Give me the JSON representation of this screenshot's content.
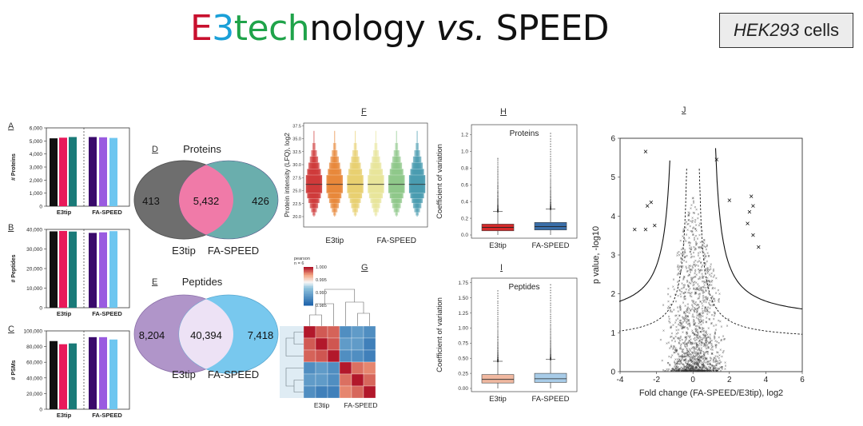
{
  "header": {
    "title_parts": [
      {
        "text": "E",
        "color": "#c8102e"
      },
      {
        "text": "3",
        "color": "#1aa0d8"
      },
      {
        "text": "tech",
        "color": "#1fa34a"
      },
      {
        "text": "nology",
        "color": "#111111"
      }
    ],
    "title_vs": "vs.",
    "title_tail": "SPEED",
    "cell_line_italic": "HEK293",
    "cell_line_suffix": "cells"
  },
  "panel_labels": {
    "a": "A",
    "b": "B",
    "c": "C",
    "d": "D",
    "e": "E",
    "f": "F",
    "g": "G",
    "h": "H",
    "i": "I",
    "j": "J"
  },
  "bar_charts": {
    "group_labels": [
      "E3tip",
      "FA-SPEED"
    ],
    "colors": [
      "#111111",
      "#e8195a",
      "#1a7a78",
      "#3a0a6b",
      "#9a5be0",
      "#6ec6f0"
    ],
    "charts": [
      {
        "ylabel": "# Proteins",
        "ticks": [
          "0",
          "1,000",
          "2,000",
          "3,000",
          "4,000",
          "5,000",
          "6,000"
        ],
        "ymax": 6000,
        "values": [
          5200,
          5250,
          5300,
          5300,
          5280,
          5230
        ]
      },
      {
        "ylabel": "# Peptides",
        "ticks": [
          "0",
          "10,000",
          "20,000",
          "30,000",
          "40,000"
        ],
        "ymax": 40000,
        "values": [
          39000,
          39200,
          38900,
          38200,
          38500,
          39100
        ]
      },
      {
        "ylabel": "# PSMs",
        "ticks": [
          "0",
          "20,000",
          "40,000",
          "60,000",
          "80,000",
          "100,000"
        ],
        "ymax": 100000,
        "values": [
          87000,
          83000,
          84000,
          92000,
          92000,
          89000
        ]
      }
    ]
  },
  "venn": {
    "proteins": {
      "title": "Proteins",
      "left": "413",
      "middle": "5,432",
      "right": "426",
      "label_left": "E3tip",
      "label_right": "FA-SPEED"
    },
    "peptides": {
      "title": "Peptides",
      "left": "8,204",
      "middle": "40,394",
      "right": "7,418",
      "label_left": "E3tip",
      "label_right": "FA-SPEED"
    }
  },
  "lfq_plot": {
    "ylabel": "Protein intensity (LFQ), log2",
    "ticks": [
      "20.0",
      "22.5",
      "25.0",
      "27.5",
      "30.0",
      "32.5",
      "35.0",
      "37.5"
    ],
    "ymin": 18,
    "ymax": 38,
    "group_labels": [
      "E3tip",
      "FA-SPEED"
    ],
    "colors": [
      "#cf3a3a",
      "#e8883a",
      "#e8d070",
      "#e8e59a",
      "#8fc88a",
      "#4a9cb0"
    ],
    "median": 26.2,
    "top": 36.5,
    "bottom": 20.0
  },
  "heatmap": {
    "legend_title": "pearson",
    "legend_n": "n = 6",
    "legend_ticks": [
      "1.000",
      "0.995",
      "0.990",
      "0.985"
    ],
    "group_labels": [
      "E3tip",
      "FA-SPEED"
    ],
    "matrix": [
      [
        1.0,
        0.9985,
        0.9983,
        0.987,
        0.988,
        0.987
      ],
      [
        0.9985,
        1.0,
        0.9986,
        0.988,
        0.988,
        0.986
      ],
      [
        0.9983,
        0.9986,
        1.0,
        0.987,
        0.987,
        0.986
      ],
      [
        0.987,
        0.988,
        0.987,
        1.0,
        0.998,
        0.9975
      ],
      [
        0.988,
        0.988,
        0.987,
        0.998,
        1.0,
        0.9982
      ],
      [
        0.987,
        0.986,
        0.986,
        0.9975,
        0.9982,
        1.0
      ]
    ]
  },
  "cv_proteins": {
    "title": "Proteins",
    "ylabel": "Coefficient of variation",
    "ticks": [
      "0.0",
      "0.2",
      "0.4",
      "0.6",
      "0.8",
      "1.0",
      "1.2"
    ],
    "ymax": 1.3,
    "group_labels": [
      "E3tip",
      "FA-SPEED"
    ],
    "colors": [
      "#d42a2a",
      "#3a6ea8"
    ],
    "boxes": [
      {
        "q1": 0.05,
        "median": 0.09,
        "q3": 0.13,
        "whisker_low": 0.0,
        "whisker_high": 0.28,
        "outlier_max": 0.92
      },
      {
        "q1": 0.06,
        "median": 0.1,
        "q3": 0.15,
        "whisker_low": 0.0,
        "whisker_high": 0.31,
        "outlier_max": 1.22
      }
    ]
  },
  "cv_peptides": {
    "title": "Peptides",
    "ylabel": "Coefficient of variation",
    "ticks": [
      "0.00",
      "0.25",
      "0.50",
      "0.75",
      "1.00",
      "1.25",
      "1.50",
      "1.75"
    ],
    "ymax": 1.8,
    "group_labels": [
      "E3tip",
      "FA-SPEED"
    ],
    "colors": [
      "#f0b8a0",
      "#a8cce8"
    ],
    "boxes": [
      {
        "q1": 0.09,
        "median": 0.15,
        "q3": 0.23,
        "whisker_low": 0.0,
        "whisker_high": 0.45,
        "outlier_max": 1.62
      },
      {
        "q1": 0.1,
        "median": 0.16,
        "q3": 0.25,
        "whisker_low": 0.0,
        "whisker_high": 0.48,
        "outlier_max": 1.72
      }
    ]
  },
  "volcano": {
    "ylabel": "p value, -log10",
    "xlabel": "Fold change (FA-SPEED/E3tip), log2",
    "xticks": [
      "-4",
      "-2",
      "0",
      "2",
      "4",
      "6"
    ],
    "yticks": [
      "0",
      "1",
      "2",
      "3",
      "4",
      "5",
      "6"
    ],
    "xlim": [
      -4,
      6
    ],
    "ylim": [
      0,
      6
    ],
    "significant": [
      [
        -2.6,
        5.65
      ],
      [
        -2.3,
        4.35
      ],
      [
        -2.5,
        4.25
      ],
      [
        -2.1,
        3.75
      ],
      [
        -3.2,
        3.65
      ],
      [
        -2.6,
        3.65
      ],
      [
        1.3,
        5.45
      ],
      [
        2.0,
        4.4
      ],
      [
        3.2,
        4.5
      ],
      [
        3.3,
        4.25
      ],
      [
        3.1,
        4.1
      ],
      [
        3.0,
        3.8
      ],
      [
        3.3,
        3.5
      ],
      [
        3.6,
        3.2
      ]
    ]
  }
}
